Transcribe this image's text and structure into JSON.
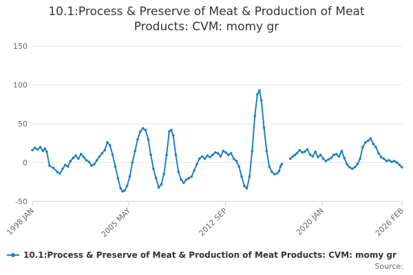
{
  "title_line1": "10.1:Process & Preserve of Meat & Production of Meat",
  "title_line2": "Products: CVM: momy gr",
  "legend_label": "10.1:Process & Preserve of Meat & Production of Meat Products: CVM: momy gr",
  "source_label": "Source:",
  "colors": {
    "series": "#1f7fbf",
    "grid": "#e6e6e6",
    "axis_text": "#666666"
  },
  "chart_data": {
    "type": "line",
    "title": "10.1:Process & Preserve of Meat & Production of Meat Products: CVM: momy gr",
    "xlabel": "",
    "ylabel": "",
    "ylim": [
      -50,
      150
    ],
    "xlim": [
      1998.0,
      2026.083
    ],
    "y_ticks": [
      -50,
      0,
      50,
      100,
      150
    ],
    "x_ticks": [
      {
        "label": "1998 JAN",
        "value": 1998.0
      },
      {
        "label": "2005 MAY",
        "value": 2005.333
      },
      {
        "label": "2012 SEP",
        "value": 2012.667
      },
      {
        "label": "2020 JAN",
        "value": 2020.0
      },
      {
        "label": "2026 FEB",
        "value": 2026.083
      }
    ],
    "grid": true,
    "legend": "bottom-left",
    "series": [
      {
        "name": "10.1:Process & Preserve of Meat & Production of Meat Products: CVM: momy gr",
        "points": [
          [
            1998.0,
            16
          ],
          [
            1998.2,
            19
          ],
          [
            1998.4,
            17
          ],
          [
            1998.6,
            20
          ],
          [
            1998.8,
            15
          ],
          [
            1998.95,
            18
          ],
          [
            1999.1,
            14
          ],
          [
            1999.3,
            -4
          ],
          [
            1999.6,
            -7
          ],
          [
            1999.9,
            -12
          ],
          [
            2000.1,
            -14
          ],
          [
            2000.3,
            -8
          ],
          [
            2000.5,
            -3
          ],
          [
            2000.7,
            -5
          ],
          [
            2000.9,
            2
          ],
          [
            2001.1,
            6
          ],
          [
            2001.3,
            9
          ],
          [
            2001.5,
            5
          ],
          [
            2001.7,
            11
          ],
          [
            2001.9,
            7
          ],
          [
            2002.1,
            3
          ],
          [
            2002.3,
            1
          ],
          [
            2002.5,
            -4
          ],
          [
            2002.7,
            -2
          ],
          [
            2002.9,
            3
          ],
          [
            2003.1,
            8
          ],
          [
            2003.3,
            12
          ],
          [
            2003.5,
            16
          ],
          [
            2003.7,
            26
          ],
          [
            2003.9,
            22
          ],
          [
            2004.1,
            10
          ],
          [
            2004.3,
            -5
          ],
          [
            2004.5,
            -20
          ],
          [
            2004.7,
            -33
          ],
          [
            2004.85,
            -37
          ],
          [
            2005.0,
            -36
          ],
          [
            2005.2,
            -30
          ],
          [
            2005.4,
            -18
          ],
          [
            2005.6,
            0
          ],
          [
            2005.8,
            15
          ],
          [
            2006.0,
            30
          ],
          [
            2006.2,
            40
          ],
          [
            2006.4,
            44
          ],
          [
            2006.6,
            42
          ],
          [
            2006.8,
            30
          ],
          [
            2007.0,
            10
          ],
          [
            2007.2,
            -8
          ],
          [
            2007.4,
            -20
          ],
          [
            2007.6,
            -32
          ],
          [
            2007.8,
            -28
          ],
          [
            2008.0,
            -15
          ],
          [
            2008.2,
            10
          ],
          [
            2008.4,
            40
          ],
          [
            2008.55,
            42
          ],
          [
            2008.7,
            35
          ],
          [
            2008.9,
            10
          ],
          [
            2009.1,
            -12
          ],
          [
            2009.3,
            -22
          ],
          [
            2009.5,
            -26
          ],
          [
            2009.7,
            -22
          ],
          [
            2009.9,
            -20
          ],
          [
            2010.1,
            -18
          ],
          [
            2010.3,
            -10
          ],
          [
            2010.5,
            -2
          ],
          [
            2010.7,
            5
          ],
          [
            2010.9,
            8
          ],
          [
            2011.1,
            5
          ],
          [
            2011.3,
            9
          ],
          [
            2011.5,
            7
          ],
          [
            2011.7,
            10
          ],
          [
            2011.9,
            13
          ],
          [
            2012.1,
            12
          ],
          [
            2012.3,
            8
          ],
          [
            2012.5,
            15
          ],
          [
            2012.7,
            13
          ],
          [
            2012.9,
            10
          ],
          [
            2013.1,
            12
          ],
          [
            2013.3,
            5
          ],
          [
            2013.5,
            2
          ],
          [
            2013.7,
            -5
          ],
          [
            2013.9,
            -18
          ],
          [
            2014.1,
            -30
          ],
          [
            2014.3,
            -33
          ],
          [
            2014.5,
            -18
          ],
          [
            2014.7,
            15
          ],
          [
            2014.9,
            60
          ],
          [
            2015.1,
            88
          ],
          [
            2015.25,
            93
          ],
          [
            2015.4,
            80
          ],
          [
            2015.6,
            45
          ],
          [
            2015.8,
            15
          ],
          [
            2016.0,
            -5
          ],
          [
            2016.2,
            -12
          ],
          [
            2016.4,
            -15
          ],
          [
            2016.6,
            -14
          ],
          [
            2016.75,
            -11
          ],
          [
            2016.85,
            -5
          ],
          [
            2016.95,
            -2
          ],
          null,
          [
            2017.6,
            5
          ],
          [
            2017.8,
            8
          ],
          [
            2017.95,
            10
          ],
          [
            2018.1,
            12
          ],
          [
            2018.3,
            16
          ],
          [
            2018.5,
            13
          ],
          [
            2018.7,
            14
          ],
          [
            2018.9,
            17
          ],
          [
            2019.1,
            10
          ],
          [
            2019.3,
            8
          ],
          [
            2019.5,
            14
          ],
          [
            2019.7,
            7
          ],
          [
            2019.9,
            10
          ],
          [
            2020.1,
            5
          ],
          [
            2020.3,
            2
          ],
          [
            2020.5,
            4
          ],
          [
            2020.7,
            6
          ],
          [
            2020.9,
            10
          ],
          [
            2021.1,
            11
          ],
          [
            2021.3,
            8
          ],
          [
            2021.5,
            15
          ],
          [
            2021.7,
            6
          ],
          [
            2021.9,
            -2
          ],
          [
            2022.1,
            -6
          ],
          [
            2022.3,
            -8
          ],
          [
            2022.5,
            -6
          ],
          [
            2022.7,
            -2
          ],
          [
            2022.9,
            5
          ],
          [
            2023.1,
            20
          ],
          [
            2023.3,
            26
          ],
          [
            2023.5,
            28
          ],
          [
            2023.7,
            31
          ],
          [
            2023.9,
            24
          ],
          [
            2024.1,
            20
          ],
          [
            2024.3,
            12
          ],
          [
            2024.5,
            7
          ],
          [
            2024.7,
            5
          ],
          [
            2024.9,
            2
          ],
          [
            2025.1,
            3
          ],
          [
            2025.3,
            1
          ],
          [
            2025.5,
            2
          ],
          [
            2025.7,
            0
          ],
          [
            2025.9,
            -3
          ],
          [
            2026.083,
            -6
          ]
        ]
      }
    ]
  }
}
